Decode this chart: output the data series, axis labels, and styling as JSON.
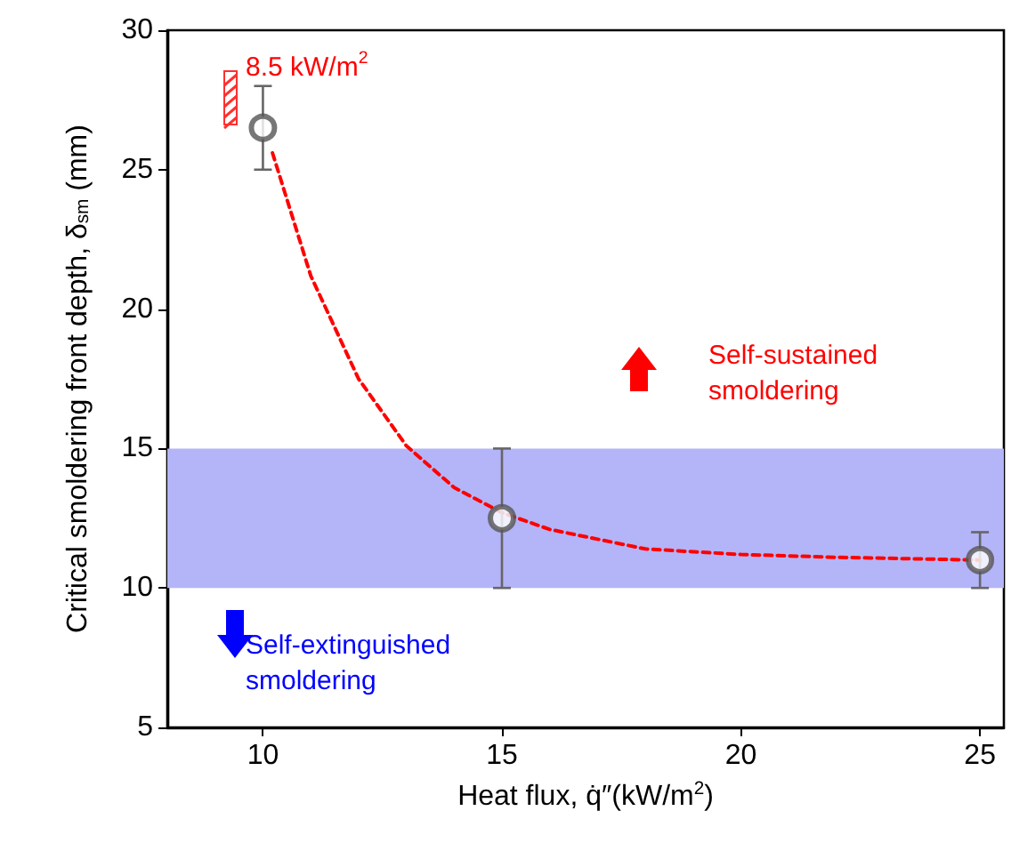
{
  "chart_data": {
    "type": "scatter",
    "xlabel": "Heat flux, q̇″(kW/m$^{2}$)",
    "ylabel": "Critical smoldering front depth, δ$_{sm}$ (mm)",
    "xlim": [
      8,
      25.5
    ],
    "xticks": [
      10,
      15,
      20,
      25
    ],
    "ylim": [
      5,
      30
    ],
    "yticks": [
      5,
      10,
      15,
      20,
      25,
      30
    ],
    "series": [
      {
        "type": "line",
        "color": "#ff0000",
        "line_style": "dashed",
        "marker": "none",
        "x": [
          10.2,
          11,
          12,
          13,
          14,
          15,
          16,
          18,
          20,
          22,
          25
        ],
        "values": [
          25.6,
          21.2,
          17.5,
          15.1,
          13.6,
          12.7,
          12.1,
          11.4,
          11.2,
          11.1,
          11.0
        ]
      },
      {
        "type": "scatter",
        "color": "#555555",
        "marker": "circle",
        "x": [
          10,
          15,
          25
        ],
        "values": [
          26.5,
          12.5,
          11
        ],
        "errors": [
          [
            25,
            28
          ],
          [
            10,
            15
          ],
          [
            10,
            12
          ]
        ]
      }
    ],
    "bands": [
      {
        "axis": "y",
        "from": 10,
        "to": 15,
        "color": "#b4b4f8"
      }
    ],
    "annotations": [
      "8.5 kW/m$^{2}$",
      "Self-sustained smoldering",
      "Self-extinguished smoldering"
    ],
    "grid": false
  }
}
